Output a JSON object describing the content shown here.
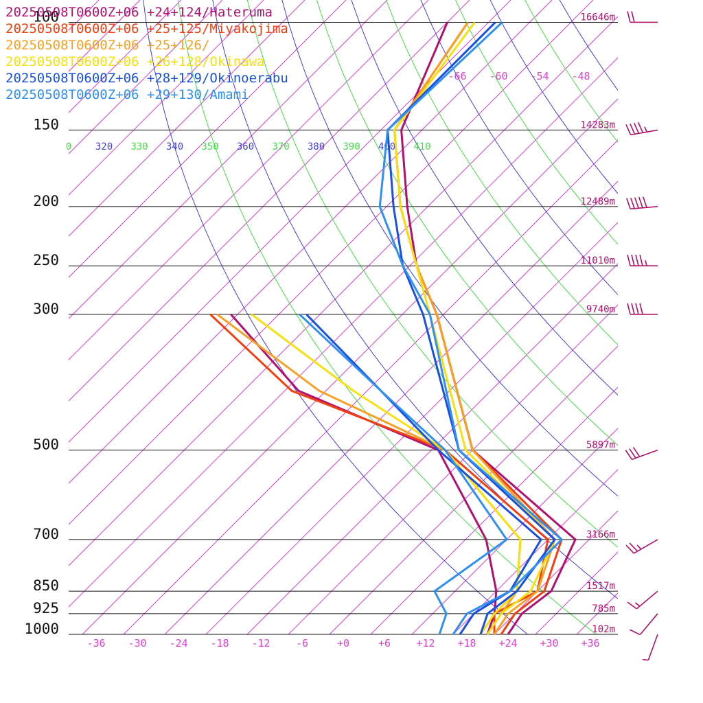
{
  "chart_data": {
    "type": "line",
    "title": "",
    "xlabel": "",
    "ylabel": "",
    "xlim": [
      -40,
      40
    ],
    "ylim_hpa": [
      1000,
      100
    ],
    "pressure_levels": [
      {
        "p": 100,
        "label": "100",
        "height": "16646m"
      },
      {
        "p": 150,
        "label": "150",
        "height": "14283m"
      },
      {
        "p": 200,
        "label": "200",
        "height": "12489m"
      },
      {
        "p": 250,
        "label": "250",
        "height": "11010m"
      },
      {
        "p": 300,
        "label": "300",
        "height": "9740m"
      },
      {
        "p": 500,
        "label": "500",
        "height": "5897m"
      },
      {
        "p": 700,
        "label": "700",
        "height": "3166m"
      },
      {
        "p": 850,
        "label": "850",
        "height": "1517m"
      },
      {
        "p": 925,
        "label": "925",
        "height": "785m"
      },
      {
        "p": 1000,
        "label": "1000",
        "height": "102m"
      }
    ],
    "x_ticks": [
      "-36",
      "-30",
      "-24",
      "-18",
      "-12",
      "-6",
      "+0",
      "+6",
      "+12",
      "+18",
      "+24",
      "+30",
      "+36"
    ],
    "x_tick_values": [
      -36,
      -30,
      -24,
      -18,
      -12,
      -6,
      0,
      6,
      12,
      18,
      24,
      30,
      36
    ],
    "upper_isotherm_labels": [
      "-66",
      "-60",
      "-54",
      "-48"
    ],
    "theta_labels": [
      {
        "text": "0",
        "color": "#40e040"
      },
      {
        "text": "320",
        "color": "#4040e0"
      },
      {
        "text": "330",
        "color": "#40e040"
      },
      {
        "text": "340",
        "color": "#4040e0"
      },
      {
        "text": "350",
        "color": "#40e040"
      },
      {
        "text": "360",
        "color": "#4040e0"
      },
      {
        "text": "370",
        "color": "#40e040"
      },
      {
        "text": "380",
        "color": "#4040e0"
      },
      {
        "text": "390",
        "color": "#40e040"
      },
      {
        "text": "400",
        "color": "#4040e0"
      },
      {
        "text": "410",
        "color": "#40e040"
      }
    ],
    "series": [
      {
        "name": "20250508T0600Z+06 +24+124/Hateruma",
        "color": "#b01070",
        "temperature": [
          {
            "p": 1000,
            "t": 24
          },
          {
            "p": 925,
            "t": 23
          },
          {
            "p": 850,
            "t": 24
          },
          {
            "p": 700,
            "t": 20
          },
          {
            "p": 500,
            "t": -8
          },
          {
            "p": 300,
            "t": -33
          },
          {
            "p": 250,
            "t": -43
          },
          {
            "p": 200,
            "t": -53
          },
          {
            "p": 150,
            "t": -65
          },
          {
            "p": 100,
            "t": -74
          }
        ],
        "dewpoint": [
          {
            "p": 1000,
            "t": 21
          },
          {
            "p": 925,
            "t": 19
          },
          {
            "p": 850,
            "t": 16
          },
          {
            "p": 700,
            "t": 7
          },
          {
            "p": 500,
            "t": -13
          },
          {
            "p": 400,
            "t": -42
          },
          {
            "p": 300,
            "t": -63
          }
        ]
      },
      {
        "name": "20250508T0600Z+06 +25+125/Miyakojima",
        "color": "#f04010",
        "temperature": [
          {
            "p": 1000,
            "t": 23
          },
          {
            "p": 925,
            "t": 22
          },
          {
            "p": 850,
            "t": 23
          },
          {
            "p": 700,
            "t": 18
          },
          {
            "p": 500,
            "t": -8
          },
          {
            "p": 300,
            "t": -33
          },
          {
            "p": 250,
            "t": -43
          },
          {
            "p": 200,
            "t": -54
          },
          {
            "p": 150,
            "t": -66
          },
          {
            "p": 100,
            "t": -71
          }
        ],
        "dewpoint": [
          {
            "p": 1000,
            "t": 22
          },
          {
            "p": 925,
            "t": 19
          },
          {
            "p": 850,
            "t": 22
          },
          {
            "p": 700,
            "t": 16
          },
          {
            "p": 500,
            "t": -12
          },
          {
            "p": 400,
            "t": -43
          },
          {
            "p": 300,
            "t": -66
          }
        ]
      },
      {
        "name": "20250508T0600Z+06 +25+126/",
        "color": "#f8a020",
        "temperature": [
          {
            "p": 1000,
            "t": 22
          },
          {
            "p": 925,
            "t": 21
          },
          {
            "p": 850,
            "t": 22
          },
          {
            "p": 700,
            "t": 17
          },
          {
            "p": 500,
            "t": -8
          },
          {
            "p": 300,
            "t": -33
          },
          {
            "p": 250,
            "t": -43
          },
          {
            "p": 200,
            "t": -54
          },
          {
            "p": 150,
            "t": -66
          },
          {
            "p": 100,
            "t": -71
          }
        ],
        "dewpoint": [
          {
            "p": 1000,
            "t": 21
          },
          {
            "p": 925,
            "t": 20
          },
          {
            "p": 850,
            "t": 19
          },
          {
            "p": 700,
            "t": 12
          },
          {
            "p": 500,
            "t": -12
          },
          {
            "p": 400,
            "t": -39
          },
          {
            "p": 300,
            "t": -65
          }
        ]
      },
      {
        "name": "20250508T0600Z+06 +26+128/Okinawa",
        "color": "#f8e010",
        "temperature": [
          {
            "p": 1000,
            "t": 21
          },
          {
            "p": 925,
            "t": 20
          },
          {
            "p": 850,
            "t": 21
          },
          {
            "p": 700,
            "t": 17
          },
          {
            "p": 500,
            "t": -9
          },
          {
            "p": 300,
            "t": -34
          },
          {
            "p": 250,
            "t": -43
          },
          {
            "p": 200,
            "t": -54
          },
          {
            "p": 150,
            "t": -66
          },
          {
            "p": 100,
            "t": -70
          }
        ],
        "dewpoint": [
          {
            "p": 1000,
            "t": 20
          },
          {
            "p": 925,
            "t": 19
          },
          {
            "p": 850,
            "t": 19
          },
          {
            "p": 700,
            "t": 12
          },
          {
            "p": 500,
            "t": -12
          },
          {
            "p": 400,
            "t": -34
          },
          {
            "p": 300,
            "t": -60
          }
        ]
      },
      {
        "name": "20250508T0600Z+06 +28+129/Okinoerabu",
        "color": "#1850e0",
        "temperature": [
          {
            "p": 1000,
            "t": 20
          },
          {
            "p": 925,
            "t": 18
          },
          {
            "p": 850,
            "t": 19
          },
          {
            "p": 700,
            "t": 17
          },
          {
            "p": 500,
            "t": -10
          },
          {
            "p": 300,
            "t": -35
          },
          {
            "p": 250,
            "t": -45
          },
          {
            "p": 200,
            "t": -55
          },
          {
            "p": 150,
            "t": -67
          },
          {
            "p": 100,
            "t": -67
          }
        ],
        "dewpoint": [
          {
            "p": 1000,
            "t": 17
          },
          {
            "p": 925,
            "t": 16
          },
          {
            "p": 850,
            "t": 18
          },
          {
            "p": 700,
            "t": 15
          },
          {
            "p": 500,
            "t": -13
          },
          {
            "p": 400,
            "t": -30
          },
          {
            "p": 300,
            "t": -52
          }
        ]
      },
      {
        "name": "20250508T0600Z+06 +29+130/Amami",
        "color": "#3090f0",
        "temperature": [
          {
            "p": 1000,
            "t": 16
          },
          {
            "p": 925,
            "t": 15
          },
          {
            "p": 850,
            "t": 18
          },
          {
            "p": 700,
            "t": 18
          },
          {
            "p": 500,
            "t": -10
          },
          {
            "p": 300,
            "t": -34
          },
          {
            "p": 250,
            "t": -45
          },
          {
            "p": 200,
            "t": -57
          },
          {
            "p": 150,
            "t": -67
          },
          {
            "p": 100,
            "t": -66
          }
        ],
        "dewpoint": [
          {
            "p": 1000,
            "t": 14
          },
          {
            "p": 925,
            "t": 12
          },
          {
            "p": 850,
            "t": 7
          },
          {
            "p": 700,
            "t": 10
          },
          {
            "p": 500,
            "t": -12
          },
          {
            "p": 400,
            "t": -30
          },
          {
            "p": 300,
            "t": -53
          }
        ]
      }
    ],
    "wind_barbs": [
      {
        "p": 1000,
        "speed_kt": 5,
        "dir": 200
      },
      {
        "p": 925,
        "speed_kt": 10,
        "dir": 220
      },
      {
        "p": 850,
        "speed_kt": 15,
        "dir": 230
      },
      {
        "p": 700,
        "speed_kt": 25,
        "dir": 240
      },
      {
        "p": 500,
        "speed_kt": 30,
        "dir": 250
      },
      {
        "p": 300,
        "speed_kt": 40,
        "dir": 270
      },
      {
        "p": 250,
        "speed_kt": 45,
        "dir": 270
      },
      {
        "p": 200,
        "speed_kt": 50,
        "dir": 265
      },
      {
        "p": 150,
        "speed_kt": 45,
        "dir": 260
      },
      {
        "p": 100,
        "speed_kt": 20,
        "dir": 270
      }
    ],
    "colors": {
      "isotherm": "#e040d0",
      "theta_dry": "#4040e0",
      "theta_moist": "#40e040",
      "isobar": "#111111",
      "height_label": "#b0106a",
      "barb": "#b0106a"
    }
  }
}
